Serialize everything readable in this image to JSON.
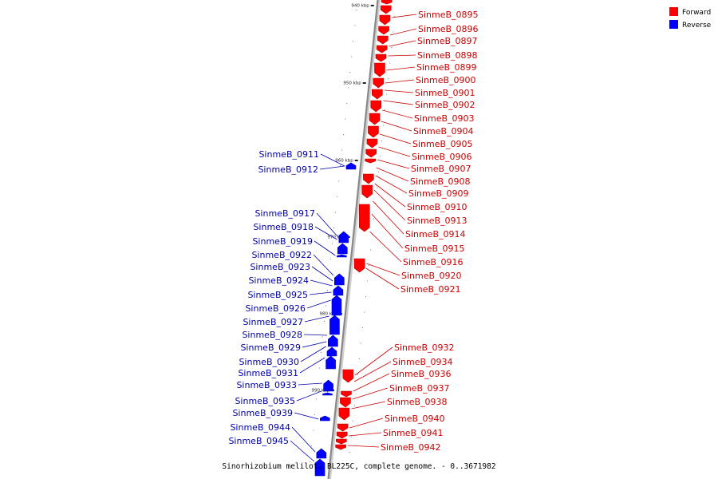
{
  "caption": "Sinorhizobium meliloti BL225C, complete genome. - 0..3671982",
  "legend": {
    "items": [
      {
        "label": "Forward",
        "color": "#ff0000"
      },
      {
        "label": "Reverse",
        "color": "#0000ff"
      }
    ]
  },
  "colors": {
    "forward": "#ff0000",
    "reverse": "#0000ff",
    "forward_label": "#cc0000",
    "reverse_label": "#0000aa",
    "backbone": "#888888"
  },
  "scale_ticks": [
    "940 kbp",
    "950 kbp",
    "960 kbp",
    "970 kbp",
    "980 kbp",
    "990 kbp"
  ],
  "forward_genes": [
    "SinmeB_0895",
    "SinmeB_0896",
    "SinmeB_0897",
    "SinmeB_0898",
    "SinmeB_0899",
    "SinmeB_0900",
    "SinmeB_0901",
    "SinmeB_0902",
    "SinmeB_0903",
    "SinmeB_0904",
    "SinmeB_0905",
    "SinmeB_0906",
    "SinmeB_0907",
    "SinmeB_0908",
    "SinmeB_0909",
    "SinmeB_0910",
    "SinmeB_0913",
    "SinmeB_0914",
    "SinmeB_0915",
    "SinmeB_0916",
    "SinmeB_0920",
    "SinmeB_0921",
    "SinmeB_0932",
    "SinmeB_0934",
    "SinmeB_0936",
    "SinmeB_0937",
    "SinmeB_0938",
    "SinmeB_0940",
    "SinmeB_0941",
    "SinmeB_0942"
  ],
  "reverse_genes": [
    "SinmeB_0911",
    "SinmeB_0912",
    "SinmeB_0917",
    "SinmeB_0918",
    "SinmeB_0919",
    "SinmeB_0922",
    "SinmeB_0923",
    "SinmeB_0924",
    "SinmeB_0925",
    "SinmeB_0926",
    "SinmeB_0927",
    "SinmeB_0928",
    "SinmeB_0929",
    "SinmeB_0930",
    "SinmeB_0931",
    "SinmeB_0933",
    "SinmeB_0935",
    "SinmeB_0939",
    "SinmeB_0944",
    "SinmeB_0945"
  ]
}
